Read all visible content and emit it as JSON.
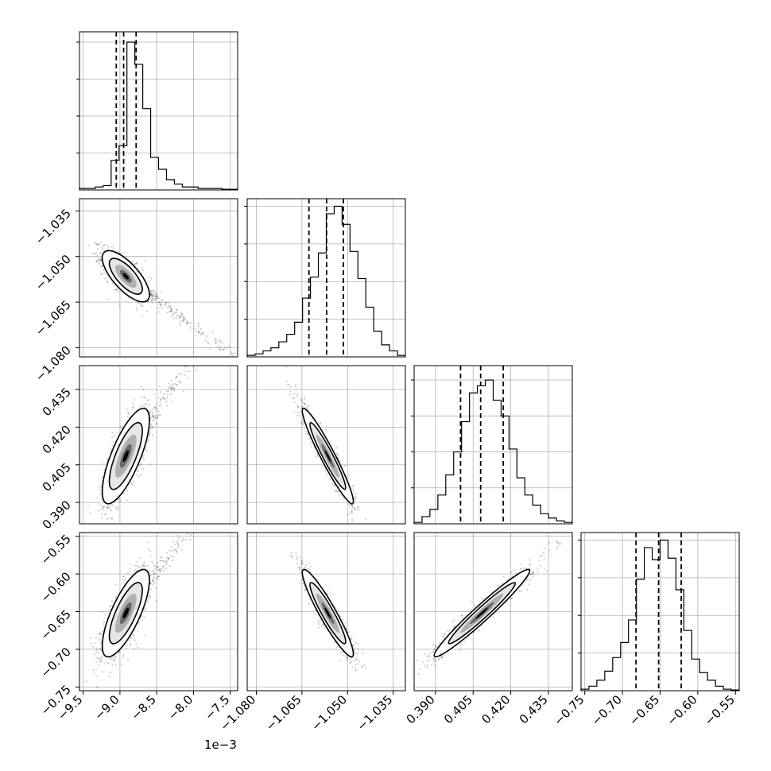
{
  "figure": {
    "type": "corner-plot",
    "background": "#ffffff",
    "dim": 4,
    "x_offset_label": "1e−3"
  },
  "chart_data": {
    "type": "corner",
    "parameters": [
      {
        "index": 0,
        "range": [
          -9.55,
          -7.4
        ],
        "ticks": [
          -9.5,
          -9.0,
          -8.5,
          -8.0,
          -7.5
        ],
        "tick_labels": [
          "−9.5",
          "−9.0",
          "−8.5",
          "−8.0",
          "−7.5"
        ],
        "quantiles": [
          -9.05,
          -8.95,
          -8.78
        ]
      },
      {
        "index": 1,
        "range": [
          -1.083,
          -1.031
        ],
        "ticks": [
          -1.08,
          -1.065,
          -1.05,
          -1.035
        ],
        "tick_labels": [
          "−1.080",
          "−1.065",
          "−1.050",
          "−1.035"
        ],
        "quantiles": [
          -1.0627,
          -1.0569,
          -1.0514
        ]
      },
      {
        "index": 2,
        "range": [
          0.3815,
          0.4445
        ],
        "ticks": [
          0.39,
          0.405,
          0.42,
          0.435
        ],
        "tick_labels": [
          "0.390",
          "0.405",
          "0.420",
          "0.435"
        ],
        "quantiles": [
          0.4,
          0.408,
          0.417
        ]
      },
      {
        "index": 3,
        "range": [
          -0.755,
          -0.545
        ],
        "ticks": [
          -0.75,
          -0.7,
          -0.65,
          -0.6,
          -0.55
        ],
        "tick_labels": [
          "−0.75",
          "−0.70",
          "−0.65",
          "−0.60",
          "−0.55"
        ],
        "quantiles": [
          -0.682,
          -0.652,
          -0.622
        ]
      }
    ],
    "histograms": [
      {
        "param": 0,
        "ymax": 1.07,
        "values": [
          0.01,
          0.01,
          0.02,
          0.03,
          0.2,
          0.3,
          1.0,
          0.85,
          0.55,
          0.22,
          0.14,
          0.07,
          0.04,
          0.02,
          0.02,
          0.01,
          0.01,
          0.01,
          0.005,
          0.005
        ]
      },
      {
        "param": 1,
        "ymax": 1.05,
        "values": [
          0.01,
          0.02,
          0.04,
          0.06,
          0.1,
          0.15,
          0.23,
          0.39,
          0.53,
          0.69,
          0.95,
          1.0,
          0.88,
          0.7,
          0.52,
          0.33,
          0.17,
          0.08,
          0.04,
          0.01
        ]
      },
      {
        "param": 2,
        "ymax": 1.1,
        "values": [
          0.01,
          0.05,
          0.1,
          0.2,
          0.34,
          0.5,
          0.71,
          0.91,
          0.96,
          1.0,
          0.86,
          0.75,
          0.52,
          0.32,
          0.2,
          0.13,
          0.07,
          0.04,
          0.02,
          0.01
        ]
      },
      {
        "param": 3,
        "ymax": 1.05,
        "values": [
          0.01,
          0.03,
          0.07,
          0.13,
          0.22,
          0.32,
          0.47,
          0.74,
          0.95,
          0.87,
          1.0,
          0.88,
          0.67,
          0.4,
          0.21,
          0.12,
          0.07,
          0.03,
          0.01,
          0.005
        ]
      }
    ],
    "pairs": [
      {
        "x": 0,
        "y": 1,
        "mean": [
          -8.92,
          -1.0565
        ],
        "sd": [
          0.16,
          0.0042
        ],
        "corr": -0.72,
        "tail": true
      },
      {
        "x": 0,
        "y": 2,
        "mean": [
          -8.92,
          0.4085
        ],
        "sd": [
          0.16,
          0.0095
        ],
        "corr": 0.75,
        "tail": true
      },
      {
        "x": 0,
        "y": 3,
        "mean": [
          -8.92,
          -0.652
        ],
        "sd": [
          0.16,
          0.029
        ],
        "corr": 0.75,
        "tail": true
      },
      {
        "x": 1,
        "y": 2,
        "mean": [
          -1.0565,
          0.4085
        ],
        "sd": [
          0.0042,
          0.0095
        ],
        "corr": -0.95,
        "tail": false
      },
      {
        "x": 1,
        "y": 3,
        "mean": [
          -1.0565,
          -0.652
        ],
        "sd": [
          0.0042,
          0.029
        ],
        "corr": -0.93,
        "tail": false
      },
      {
        "x": 2,
        "y": 3,
        "mean": [
          0.4085,
          -0.652
        ],
        "sd": [
          0.0095,
          0.029
        ],
        "corr": 0.97,
        "tail": false
      }
    ],
    "styles": {
      "hist_color": "#000000",
      "point_color": "#000000",
      "contour_color": "#000000",
      "fill_colors": [
        "#ffffff",
        "#e6e6e6",
        "#b0b0b0",
        "#6a6a6a",
        "#000000"
      ],
      "grid_color": "#b0b0b0"
    }
  }
}
